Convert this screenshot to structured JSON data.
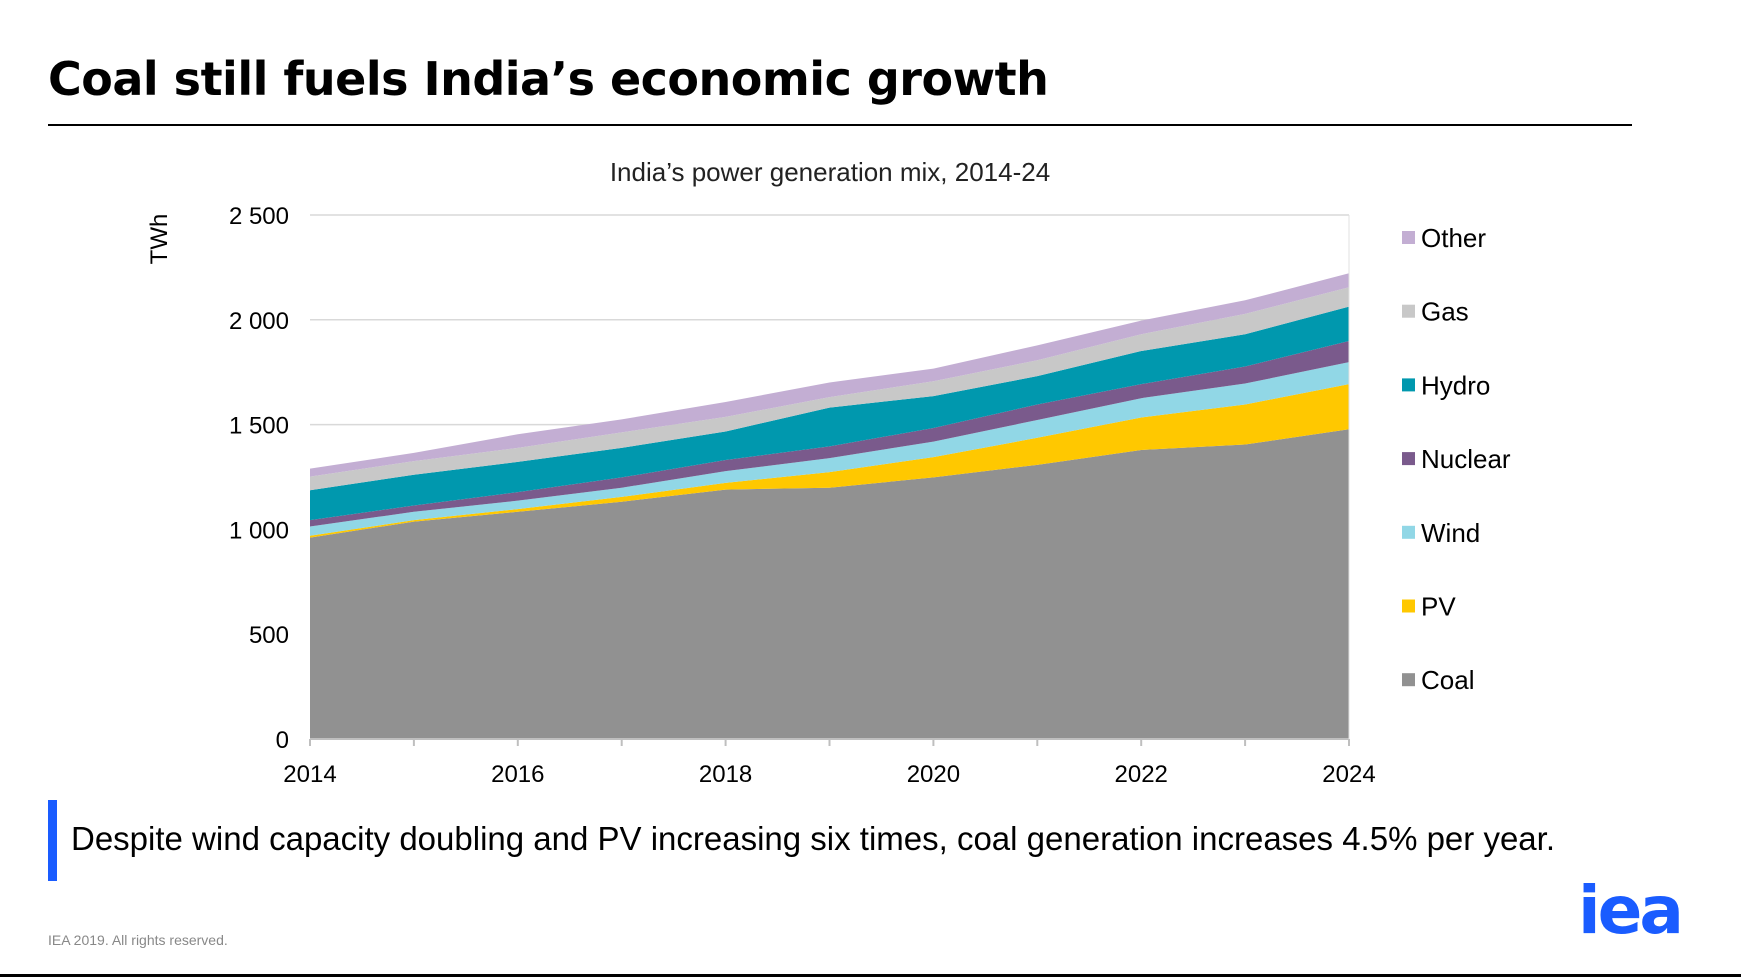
{
  "slide": {
    "title": "Coal still fuels India’s economic growth",
    "callout": "Despite wind capacity doubling and PV increasing six times, coal generation increases 4.5% per year.",
    "footer": "IEA 2019. All rights reserved.",
    "logo": "iea",
    "accent_color": "#1a5cff"
  },
  "chart_data": {
    "type": "area",
    "stacked": true,
    "title": "India’s power generation mix, 2014-24",
    "ylabel": "TWh",
    "xlabel": "",
    "ylim": [
      0,
      2500
    ],
    "xlim": [
      2014,
      2024
    ],
    "grid": true,
    "legend_placement": "right",
    "y_ticks": [
      "0",
      "500",
      "1 000",
      "1 500",
      "2 000",
      "2 500"
    ],
    "x_ticks": [
      "2014",
      "2016",
      "2018",
      "2020",
      "2022",
      "2024"
    ],
    "x": [
      2014,
      2015,
      2016,
      2017,
      2018,
      2019,
      2020,
      2021,
      2022,
      2023,
      2024
    ],
    "series": [
      {
        "name": "Coal",
        "color": "#919191",
        "values": [
          961,
          1037,
          1084,
          1132,
          1190,
          1199,
          1248,
          1308,
          1379,
          1405,
          1478
        ]
      },
      {
        "name": "PV",
        "color": "#ffc800",
        "values": [
          9,
          7,
          13,
          23,
          32,
          74,
          97,
          129,
          155,
          191,
          215
        ]
      },
      {
        "name": "Wind",
        "color": "#91d7e6",
        "values": [
          44,
          40,
          40,
          44,
          56,
          67,
          74,
          85,
          92,
          100,
          105
        ]
      },
      {
        "name": "Nuclear",
        "color": "#7a5a8c",
        "values": [
          30,
          30,
          41,
          49,
          53,
          56,
          65,
          74,
          67,
          81,
          101
        ]
      },
      {
        "name": "Hydro",
        "color": "#0098ae",
        "values": [
          143,
          147,
          144,
          141,
          136,
          185,
          152,
          135,
          158,
          154,
          164
        ]
      },
      {
        "name": "Gas",
        "color": "#c8c8c8",
        "values": [
          65,
          65,
          67,
          74,
          70,
          50,
          71,
          76,
          80,
          97,
          92
        ]
      },
      {
        "name": "Other",
        "color": "#c3aed3",
        "values": [
          38,
          39,
          65,
          62,
          71,
          70,
          60,
          71,
          65,
          65,
          67
        ]
      }
    ]
  }
}
